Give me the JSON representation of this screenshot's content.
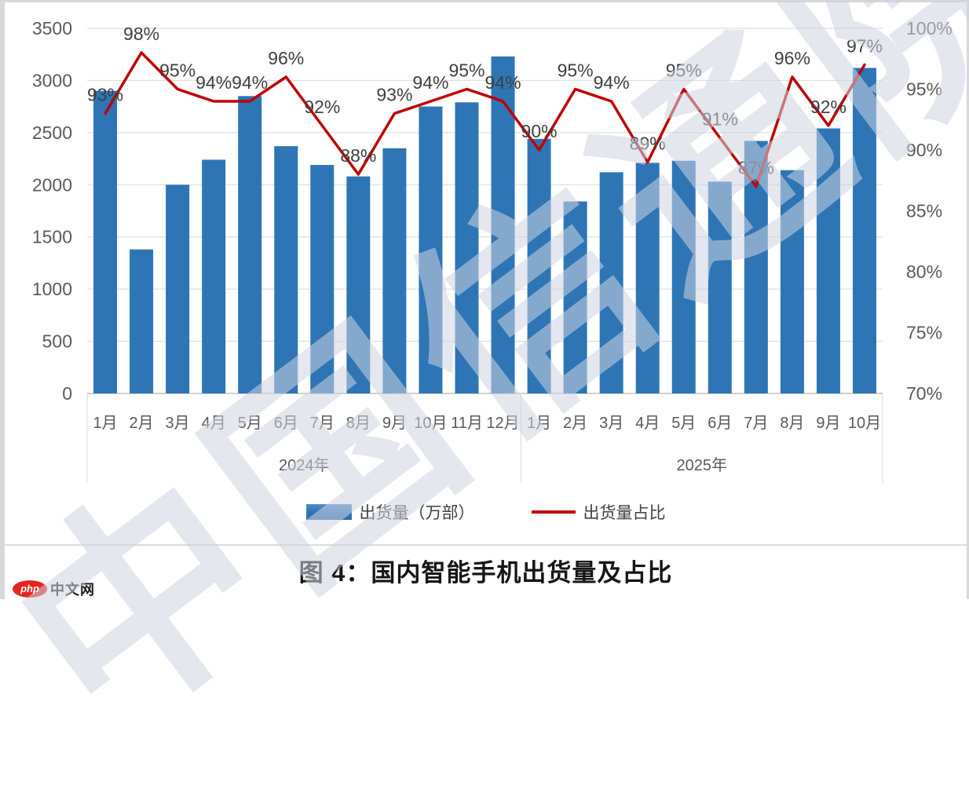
{
  "page": {
    "caption": "图 4：国内智能手机出货量及占比",
    "watermark": "中国信通院",
    "logo_badge": "php",
    "logo_text": "中文网"
  },
  "legend": {
    "bars_label": "出货量（万部）",
    "line_label": "出货量占比"
  },
  "colors": {
    "bar": "#2E75B6",
    "line": "#C00000",
    "grid": "#D9D9D9",
    "axis_line": "#BFBFBF",
    "axis_text": "#595959",
    "label_text": "#3F3F3F"
  },
  "chart_data": {
    "type": "bar",
    "title": "图 4：国内智能手机出货量及占比",
    "xlabel": "",
    "ylabel_left": "出货量（万部）",
    "ylabel_right": "出货量占比",
    "categories": [
      "1月",
      "2月",
      "3月",
      "4月",
      "5月",
      "6月",
      "7月",
      "8月",
      "9月",
      "10月",
      "11月",
      "12月",
      "1月",
      "2月",
      "3月",
      "4月",
      "5月",
      "6月",
      "7月",
      "8月",
      "9月",
      "10月"
    ],
    "group_labels": [
      {
        "label": "2024年",
        "span": 12
      },
      {
        "label": "2025年",
        "span": 10
      }
    ],
    "series": [
      {
        "name": "出货量（万部）",
        "type": "bar",
        "axis": "left",
        "values": [
          2900,
          1380,
          2000,
          2240,
          2850,
          2370,
          2190,
          2080,
          2350,
          2750,
          2790,
          3230,
          2440,
          1840,
          2120,
          2210,
          2230,
          2030,
          2420,
          2140,
          2540,
          3120
        ]
      },
      {
        "name": "出货量占比",
        "type": "line",
        "axis": "right",
        "values": [
          93,
          98,
          95,
          94,
          94,
          96,
          92,
          88,
          93,
          94,
          95,
          94,
          90,
          95,
          94,
          89,
          95,
          91,
          87,
          96,
          92,
          97
        ],
        "labels": [
          "93%",
          "98%",
          "95%",
          "94%",
          "94%",
          "96%",
          "92%",
          "88%",
          "93%",
          "94%",
          "95%",
          "94%",
          "90%",
          "95%",
          "94%",
          "89%",
          "95%",
          "91%",
          "87%",
          "96%",
          "92%",
          "97%"
        ]
      }
    ],
    "left_axis": {
      "min": 0,
      "max": 3500,
      "step": 500,
      "ticks": [
        "0",
        "500",
        "1000",
        "1500",
        "2000",
        "2500",
        "3000",
        "3500"
      ]
    },
    "right_axis": {
      "min": 70,
      "max": 100,
      "step": 5,
      "ticks": [
        "70%",
        "75%",
        "80%",
        "85%",
        "90%",
        "95%",
        "100%"
      ]
    },
    "grid": true,
    "legend_position": "bottom"
  }
}
